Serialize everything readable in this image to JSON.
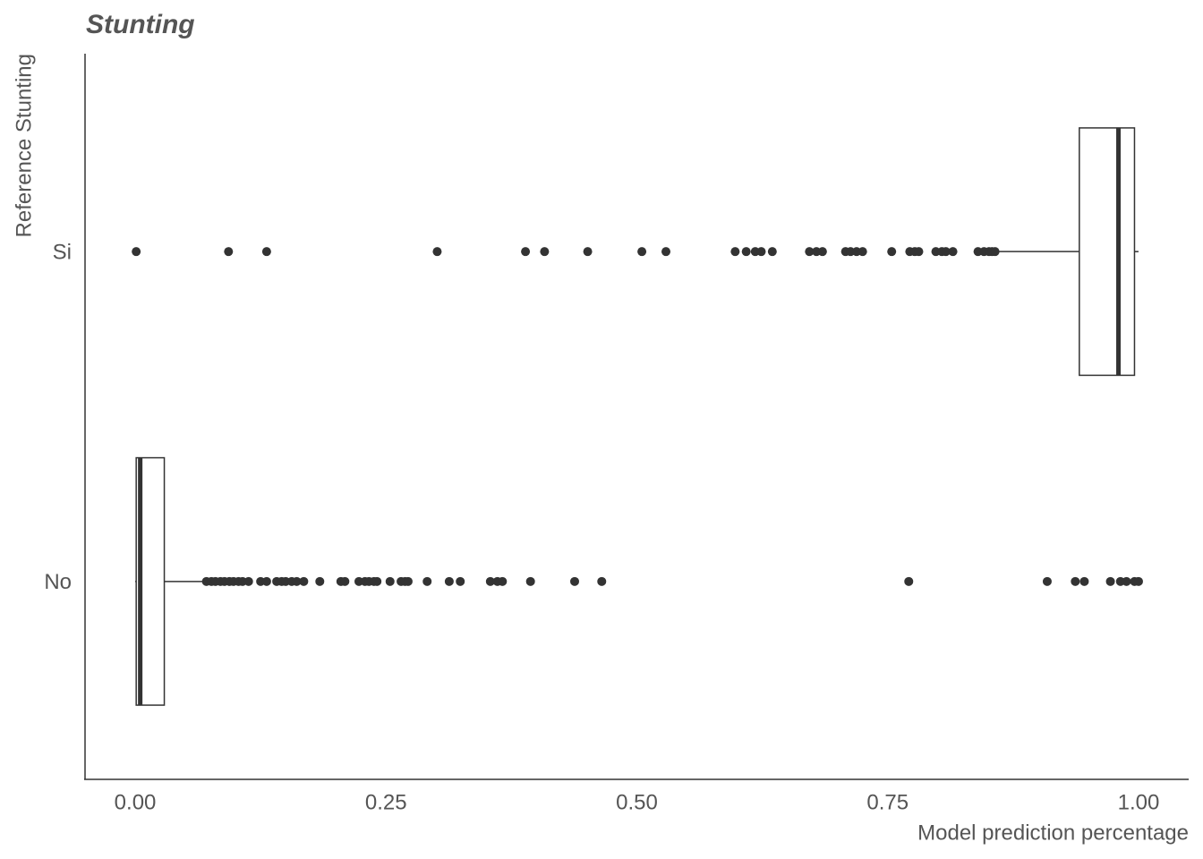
{
  "chart_data": {
    "type": "boxplot",
    "title": "Stunting",
    "xlabel": "Model prediction percentage",
    "ylabel": "Reference Stunting",
    "categories": [
      "Si",
      "No"
    ],
    "color": "#333333",
    "boxes": [
      {
        "min": 0.859,
        "q1": 0.941,
        "median": 0.98,
        "q3": 0.996,
        "max": 1.0,
        "outliers": [
          0.001,
          0.093,
          0.131,
          0.301,
          0.389,
          0.408,
          0.451,
          0.505,
          0.529,
          0.598,
          0.609,
          0.618,
          0.624,
          0.635,
          0.672,
          0.679,
          0.685,
          0.708,
          0.713,
          0.719,
          0.725,
          0.754,
          0.772,
          0.777,
          0.781,
          0.798,
          0.804,
          0.808,
          0.815,
          0.84,
          0.846,
          0.851,
          0.854,
          0.857
        ]
      },
      {
        "min": 0.0,
        "q1": 0.001,
        "median": 0.005,
        "q3": 0.029,
        "max": 0.07,
        "outliers": [
          0.071,
          0.076,
          0.08,
          0.085,
          0.089,
          0.094,
          0.098,
          0.103,
          0.107,
          0.113,
          0.125,
          0.131,
          0.141,
          0.146,
          0.15,
          0.156,
          0.161,
          0.168,
          0.184,
          0.205,
          0.209,
          0.223,
          0.229,
          0.233,
          0.238,
          0.241,
          0.254,
          0.265,
          0.269,
          0.272,
          0.291,
          0.313,
          0.324,
          0.354,
          0.361,
          0.366,
          0.394,
          0.438,
          0.465,
          0.771,
          0.909,
          0.937,
          0.946,
          0.972,
          0.982,
          0.988,
          0.996,
          1.0
        ]
      }
    ],
    "xlim": [
      -0.05,
      1.05
    ],
    "xticks": [
      {
        "value": 0,
        "label": "0.00"
      },
      {
        "value": 0.25,
        "label": "0.25"
      },
      {
        "value": 0.5,
        "label": "0.50"
      },
      {
        "value": 0.75,
        "label": "0.75"
      },
      {
        "value": 1,
        "label": "1.00"
      }
    ],
    "grid": false
  }
}
